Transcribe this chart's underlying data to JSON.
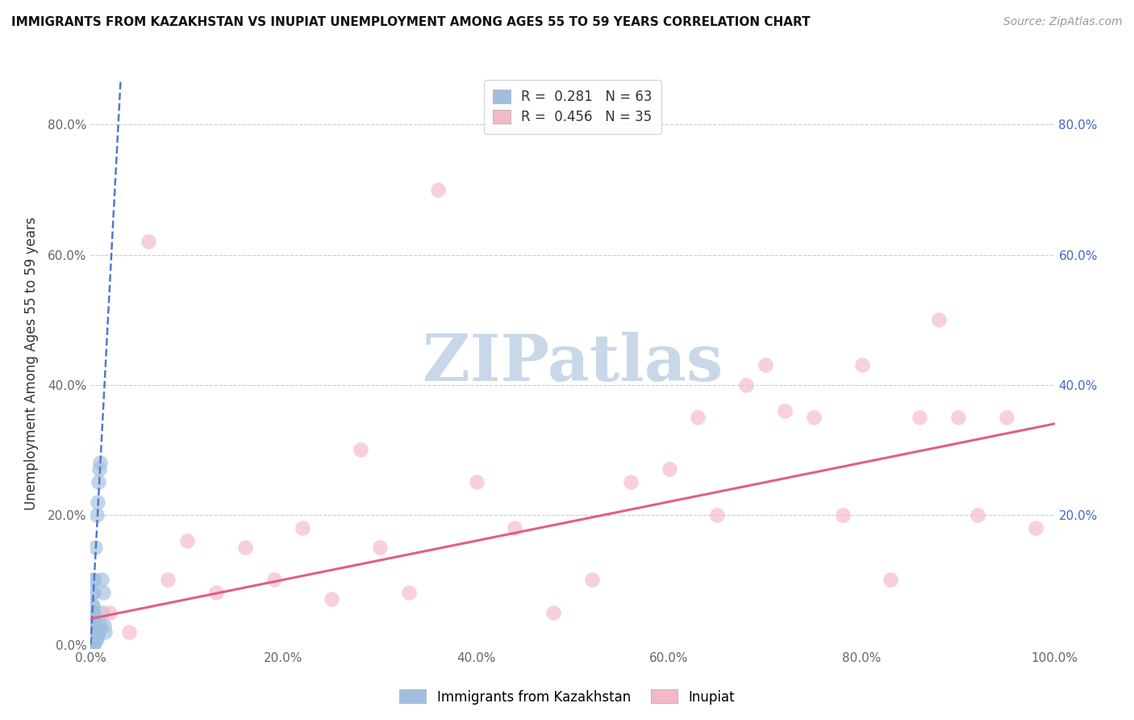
{
  "title": "IMMIGRANTS FROM KAZAKHSTAN VS INUPIAT UNEMPLOYMENT AMONG AGES 55 TO 59 YEARS CORRELATION CHART",
  "source": "Source: ZipAtlas.com",
  "ylabel": "Unemployment Among Ages 55 to 59 years",
  "xlim": [
    0,
    1.0
  ],
  "ylim": [
    -0.005,
    0.87
  ],
  "background_color": "#ffffff",
  "grid_color": "#cccccc",
  "blue_R": 0.281,
  "blue_N": 63,
  "pink_R": 0.456,
  "pink_N": 35,
  "blue_label": "Immigrants from Kazakhstan",
  "pink_label": "Inupiat",
  "blue_color": "#a0bfe0",
  "pink_color": "#f5b8c8",
  "blue_line_color": "#5577cc",
  "pink_line_color": "#e06080",
  "blue_scatter_x": [
    0.001,
    0.001,
    0.001,
    0.001,
    0.001,
    0.001,
    0.001,
    0.001,
    0.001,
    0.001,
    0.001,
    0.001,
    0.001,
    0.001,
    0.001,
    0.001,
    0.001,
    0.001,
    0.001,
    0.001,
    0.002,
    0.002,
    0.002,
    0.002,
    0.002,
    0.002,
    0.002,
    0.002,
    0.002,
    0.002,
    0.002,
    0.002,
    0.002,
    0.002,
    0.002,
    0.003,
    0.003,
    0.003,
    0.003,
    0.003,
    0.003,
    0.003,
    0.004,
    0.004,
    0.004,
    0.004,
    0.005,
    0.005,
    0.006,
    0.006,
    0.007,
    0.007,
    0.008,
    0.008,
    0.009,
    0.009,
    0.01,
    0.01,
    0.011,
    0.012,
    0.013,
    0.014,
    0.015
  ],
  "blue_scatter_y": [
    0.001,
    0.002,
    0.003,
    0.004,
    0.005,
    0.006,
    0.007,
    0.008,
    0.009,
    0.01,
    0.012,
    0.015,
    0.018,
    0.02,
    0.025,
    0.03,
    0.035,
    0.04,
    0.05,
    0.06,
    0.001,
    0.002,
    0.003,
    0.005,
    0.007,
    0.01,
    0.015,
    0.02,
    0.025,
    0.03,
    0.04,
    0.05,
    0.06,
    0.08,
    0.1,
    0.002,
    0.005,
    0.01,
    0.02,
    0.03,
    0.05,
    0.08,
    0.003,
    0.008,
    0.015,
    0.1,
    0.005,
    0.15,
    0.01,
    0.2,
    0.015,
    0.22,
    0.02,
    0.25,
    0.025,
    0.27,
    0.03,
    0.28,
    0.1,
    0.05,
    0.08,
    0.03,
    0.02
  ],
  "pink_scatter_x": [
    0.02,
    0.04,
    0.06,
    0.08,
    0.1,
    0.13,
    0.16,
    0.19,
    0.22,
    0.25,
    0.28,
    0.3,
    0.33,
    0.36,
    0.4,
    0.44,
    0.48,
    0.52,
    0.56,
    0.6,
    0.63,
    0.65,
    0.68,
    0.7,
    0.72,
    0.75,
    0.78,
    0.8,
    0.83,
    0.86,
    0.88,
    0.9,
    0.92,
    0.95,
    0.98
  ],
  "pink_scatter_y": [
    0.05,
    0.02,
    0.62,
    0.1,
    0.16,
    0.08,
    0.15,
    0.1,
    0.18,
    0.07,
    0.3,
    0.15,
    0.08,
    0.7,
    0.25,
    0.18,
    0.05,
    0.1,
    0.25,
    0.27,
    0.35,
    0.2,
    0.4,
    0.43,
    0.36,
    0.35,
    0.2,
    0.43,
    0.1,
    0.35,
    0.5,
    0.35,
    0.2,
    0.35,
    0.18
  ],
  "blue_line_x0": 0.0,
  "blue_line_y0": 0.0,
  "blue_line_slope": 28.0,
  "pink_line_x0": 0.0,
  "pink_line_y0": 0.04,
  "pink_line_x1": 1.0,
  "pink_line_y1": 0.34,
  "watermark": "ZIPatlas",
  "watermark_color": "#c8d8e8",
  "watermark_fontsize": 58
}
